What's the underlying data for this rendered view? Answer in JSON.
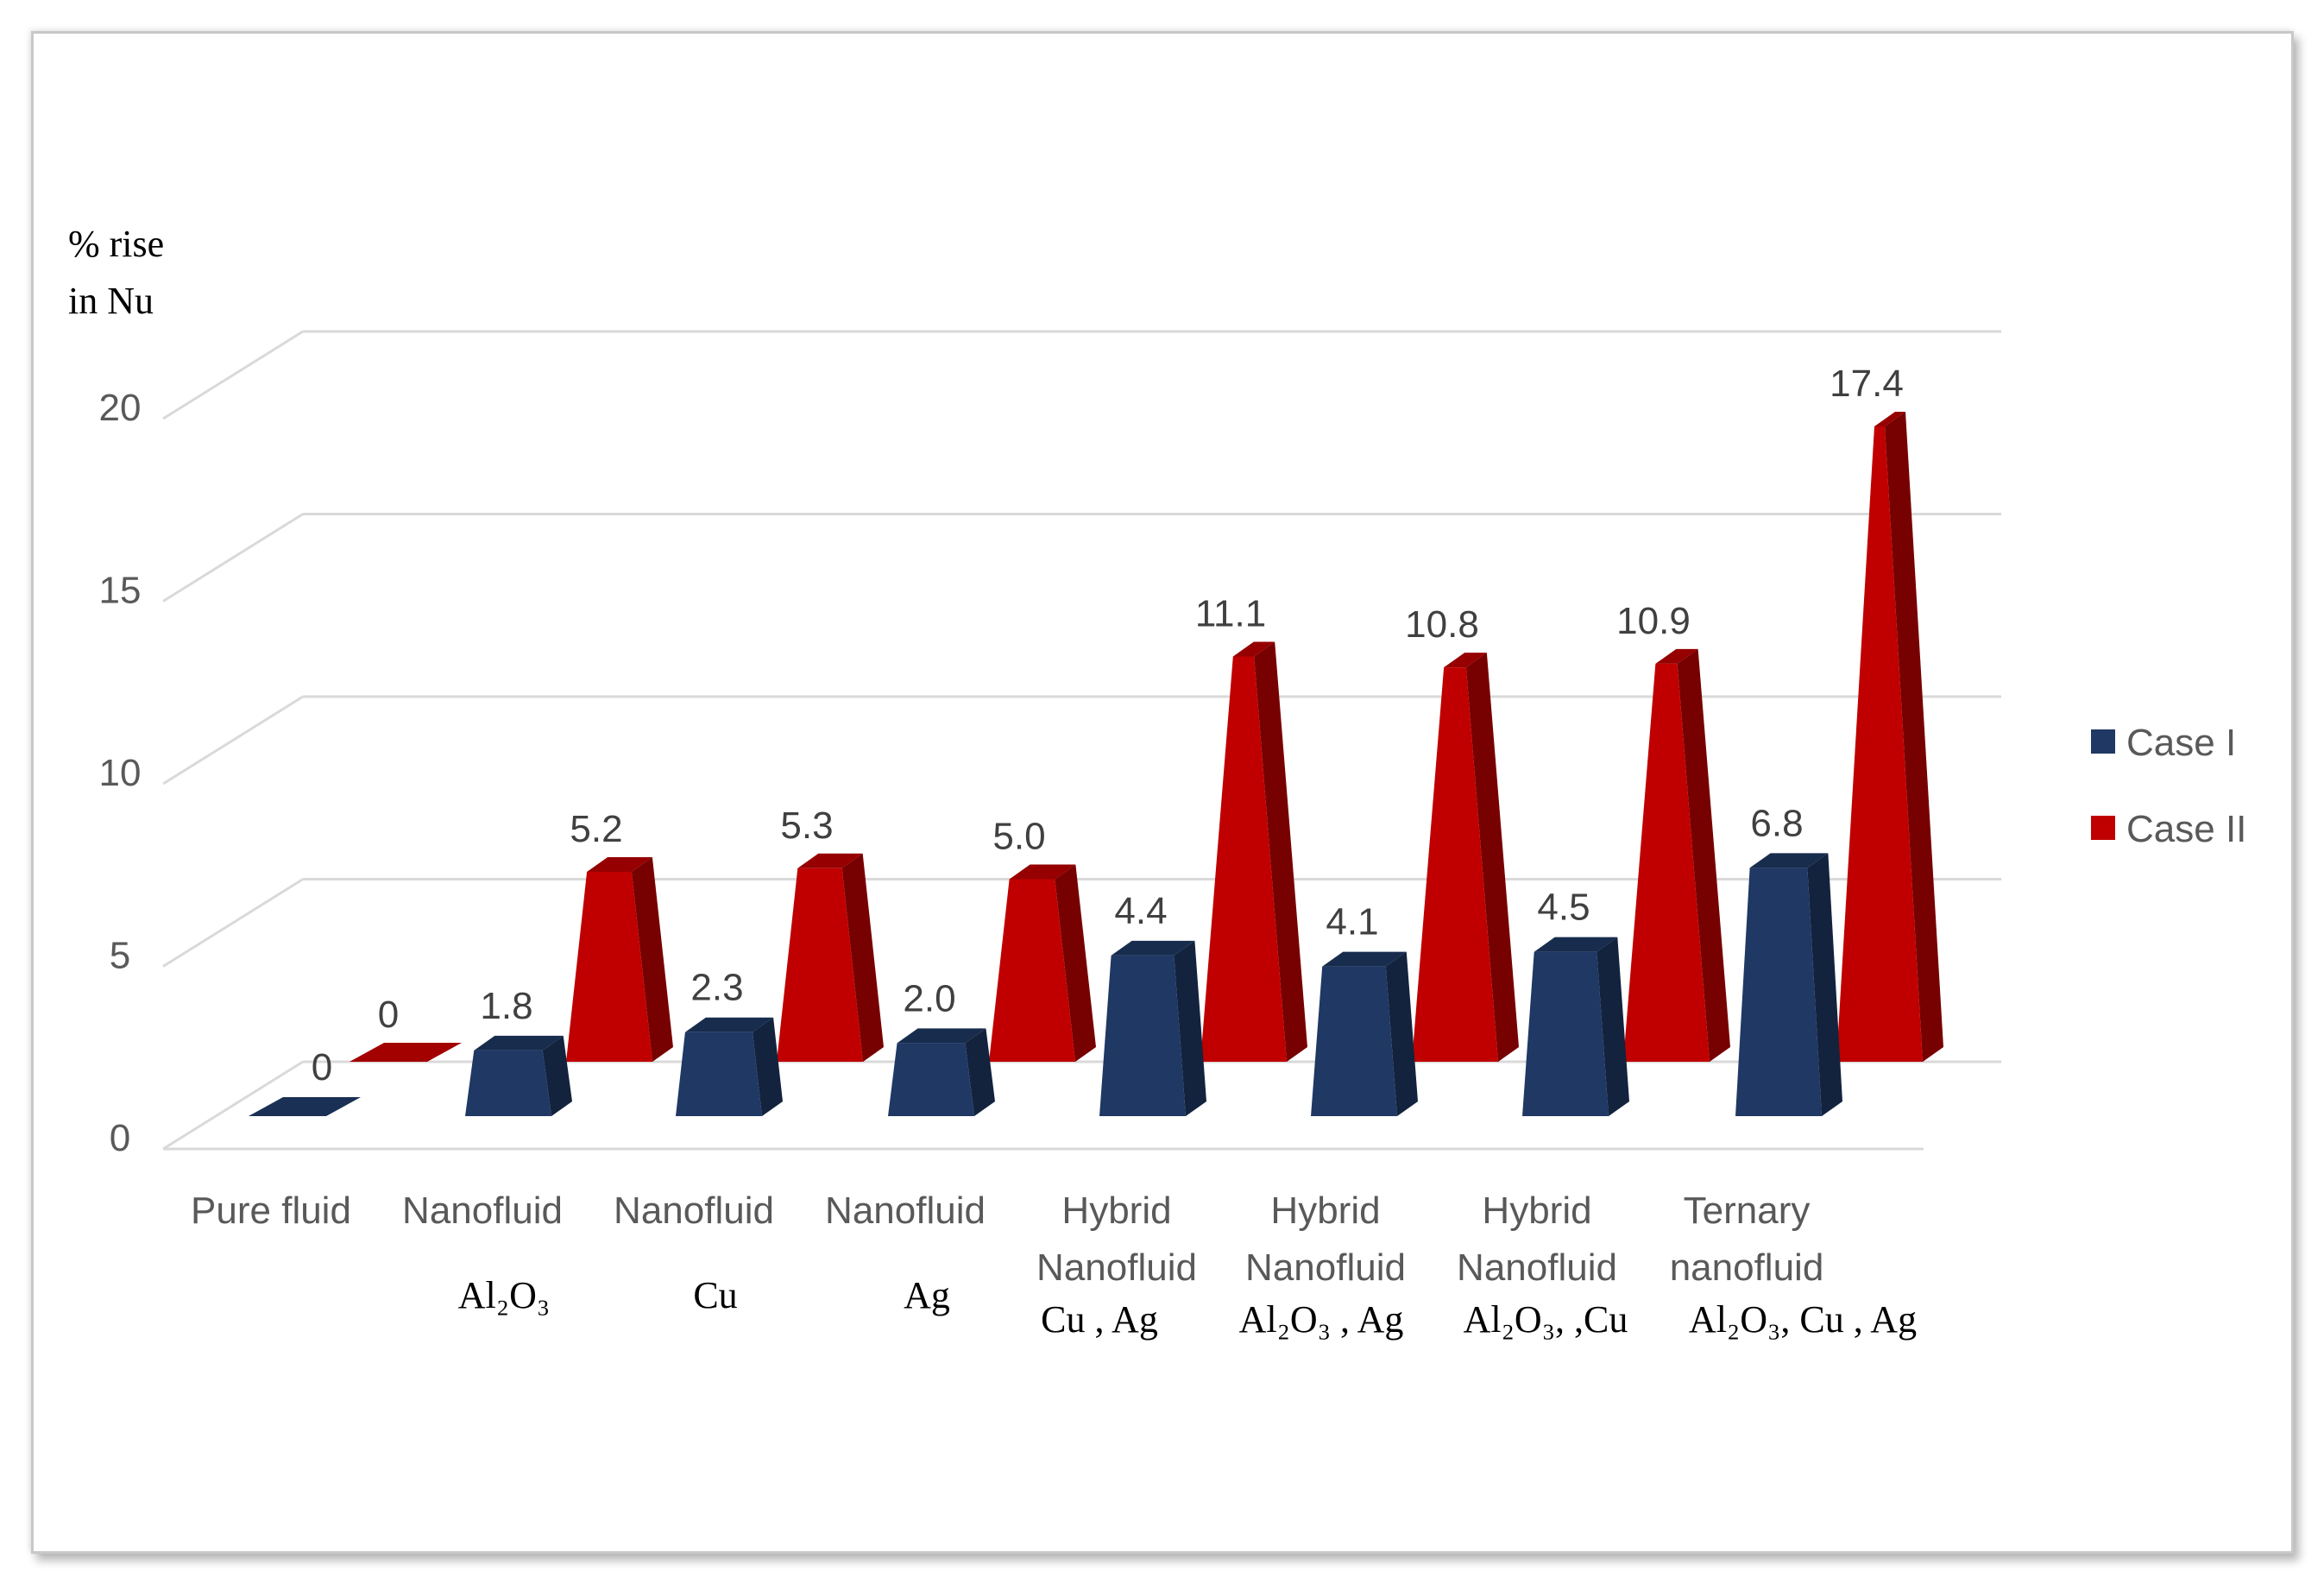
{
  "chart_data": {
    "type": "bar",
    "style": "3d-pyramid",
    "ylabel_lines": [
      "% rise",
      "in Nu"
    ],
    "ylim": [
      0,
      20
    ],
    "yticks": [
      0,
      5,
      10,
      15,
      20
    ],
    "grid": true,
    "legend_position": "right",
    "categories": [
      {
        "lines": [
          "Pure fluid"
        ],
        "formula": ""
      },
      {
        "lines": [
          "Nanofluid"
        ],
        "formula": "Al₂O₃"
      },
      {
        "lines": [
          "Nanofluid"
        ],
        "formula": "Cu"
      },
      {
        "lines": [
          "Nanofluid"
        ],
        "formula": "Ag"
      },
      {
        "lines": [
          "Hybrid",
          "Nanofluid"
        ],
        "formula": "Cu , Ag"
      },
      {
        "lines": [
          "Hybrid",
          "Nanofluid"
        ],
        "formula": "Al₂O₃ , Ag"
      },
      {
        "lines": [
          "Hybrid",
          "Nanofluid"
        ],
        "formula": "Al₂O₃, ,Cu"
      },
      {
        "lines": [
          "Ternary",
          "nanofluid"
        ],
        "formula": "Al₂O₃, Cu , Ag"
      }
    ],
    "series": [
      {
        "name": "Case I",
        "color": "#1f3864",
        "values": [
          0,
          1.8,
          2.3,
          2.0,
          4.4,
          4.1,
          4.5,
          6.8
        ],
        "labels": [
          "0",
          "1.8",
          "2.3",
          "2.0",
          "4.4",
          "4.1",
          "4.5",
          "6.8"
        ]
      },
      {
        "name": "Case II",
        "color": "#c00000",
        "values": [
          0,
          5.2,
          5.3,
          5.0,
          11.1,
          10.8,
          10.9,
          17.4
        ],
        "labels": [
          "0",
          "5.2",
          "5.3",
          "5.0",
          "11.1",
          "10.8",
          "10.9",
          "17.4"
        ]
      }
    ]
  }
}
